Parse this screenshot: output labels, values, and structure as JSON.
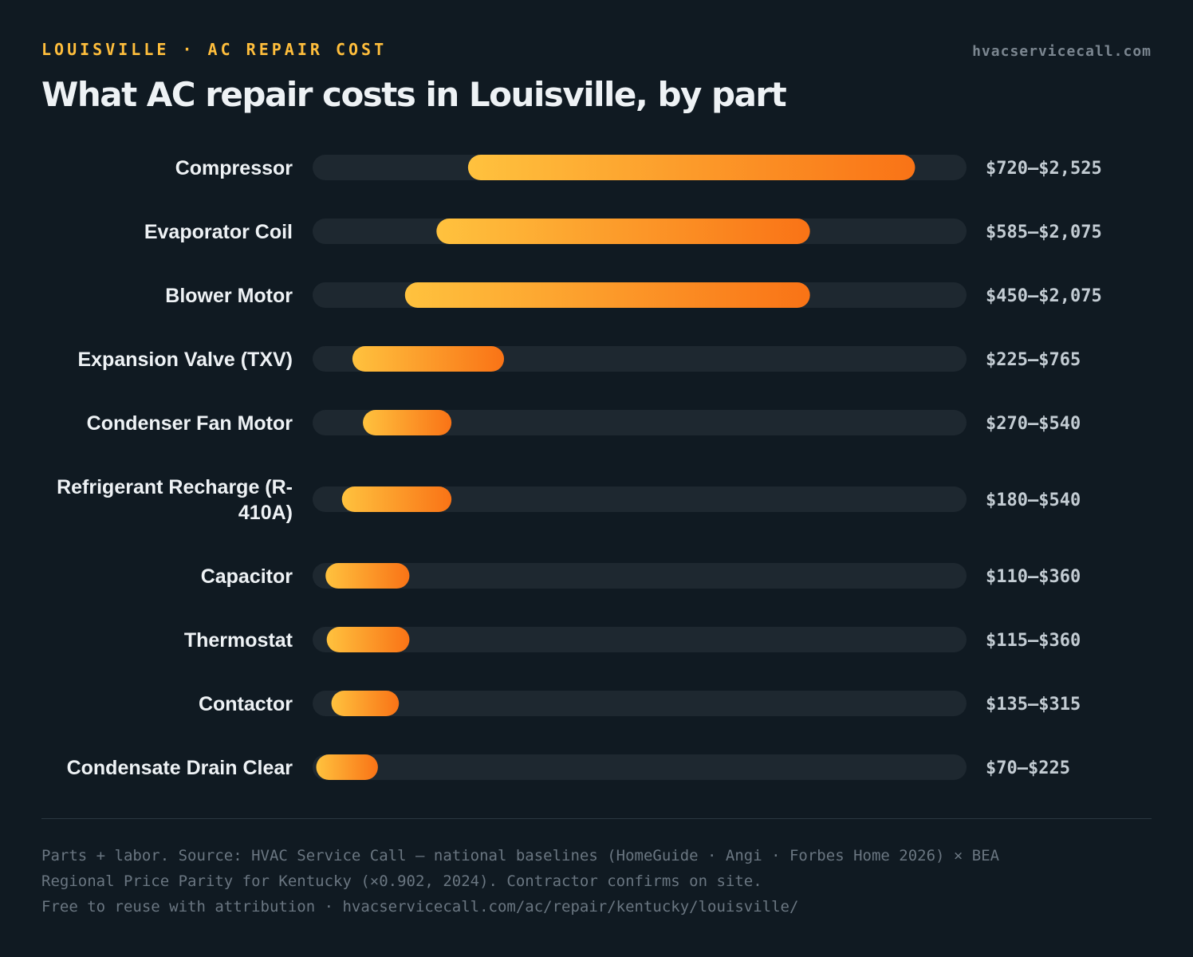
{
  "header": {
    "eyebrow": "LOUISVILLE · AC REPAIR COST",
    "site": "hvacservicecall.com",
    "title": "What AC repair costs in Louisville, by part"
  },
  "colors": {
    "background": "#101a22",
    "track": "#1e2830",
    "bar_start": "#ffc23e",
    "bar_end": "#f97316",
    "accent": "#ffbe3c"
  },
  "chart_data": {
    "type": "bar",
    "orientation": "horizontal-range",
    "title": "What AC repair costs in Louisville, by part",
    "xlim": [
      0,
      2800
    ],
    "grid": false,
    "categories": [
      "Compressor",
      "Evaporator Coil",
      "Blower Motor",
      "Expansion Valve (TXV)",
      "Condenser Fan Motor",
      "Refrigerant Recharge (R-410A)",
      "Capacitor",
      "Thermostat",
      "Contactor",
      "Condensate Drain Clear"
    ],
    "low": [
      720,
      585,
      450,
      225,
      270,
      180,
      110,
      115,
      135,
      70
    ],
    "high": [
      2525,
      2075,
      2075,
      765,
      540,
      540,
      360,
      360,
      315,
      225
    ],
    "range_labels": [
      "$720–$2,525",
      "$585–$2,075",
      "$450–$2,075",
      "$225–$765",
      "$270–$540",
      "$180–$540",
      "$110–$360",
      "$115–$360",
      "$135–$315",
      "$70–$225"
    ]
  },
  "footer": {
    "line1": "Parts + labor. Source: HVAC Service Call — national baselines (HomeGuide · Angi · Forbes Home 2026) × BEA",
    "line2": "Regional Price Parity for Kentucky (×0.902, 2024). Contractor confirms on site.",
    "line3": "Free to reuse with attribution · hvacservicecall.com/ac/repair/kentucky/louisville/"
  }
}
